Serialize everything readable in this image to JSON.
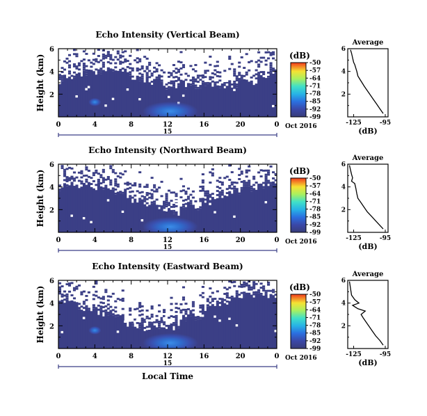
{
  "chart_data": [
    {
      "type": "heatmap",
      "title": "Echo Intensity (Vertical Beam)",
      "ylabel": "Height (km)",
      "x_ticks": [
        "0",
        "4",
        "8",
        "12",
        "16",
        "20",
        "0"
      ],
      "y_ticks": [
        "6",
        "4",
        "2"
      ],
      "xlim": [
        0,
        24
      ],
      "ylim": [
        0,
        6
      ],
      "date_label": "Oct 2016",
      "day_label": "15",
      "colorbar": {
        "label": "(dB)",
        "ticks": [
          "-50",
          "-57",
          "-64",
          "-71",
          "-78",
          "-85",
          "-92",
          "-99"
        ],
        "range": [
          -99,
          -50
        ]
      },
      "profile": {
        "title": "Average",
        "xlabel": "(dB)",
        "x_ticks": [
          "-125",
          "-95"
        ],
        "y_ticks": [
          "6",
          "4",
          "2"
        ],
        "points": [
          [
            -128,
            5.9
          ],
          [
            -127,
            5.6
          ],
          [
            -126,
            5.2
          ],
          [
            -125,
            4.8
          ],
          [
            -124,
            4.6
          ],
          [
            -123,
            4.3
          ],
          [
            -122,
            4.0
          ],
          [
            -121,
            3.6
          ],
          [
            -119,
            3.3
          ],
          [
            -117,
            3.0
          ],
          [
            -115,
            2.7
          ],
          [
            -112,
            2.3
          ],
          [
            -109,
            1.9
          ],
          [
            -106,
            1.5
          ],
          [
            -103,
            1.1
          ],
          [
            -100,
            0.7
          ],
          [
            -97,
            0.3
          ]
        ]
      }
    },
    {
      "type": "heatmap",
      "title": "Echo Intensity (Northward Beam)",
      "ylabel": "Height (km)",
      "x_ticks": [
        "0",
        "4",
        "8",
        "12",
        "16",
        "20",
        "0"
      ],
      "y_ticks": [
        "6",
        "4",
        "2"
      ],
      "xlim": [
        0,
        24
      ],
      "ylim": [
        0,
        6
      ],
      "date_label": "Oct 2016",
      "day_label": "15",
      "colorbar": {
        "label": "(dB)",
        "ticks": [
          "-50",
          "-57",
          "-64",
          "-71",
          "-78",
          "-85",
          "-92",
          "-99"
        ],
        "range": [
          -99,
          -50
        ]
      },
      "profile": {
        "title": "Average",
        "xlabel": "(dB)",
        "x_ticks": [
          "-125",
          "-95"
        ],
        "y_ticks": [
          "6",
          "4",
          "2"
        ],
        "points": [
          [
            -129,
            5.9
          ],
          [
            -128,
            5.5
          ],
          [
            -127,
            5.1
          ],
          [
            -126,
            4.8
          ],
          [
            -127,
            4.5
          ],
          [
            -124,
            4.3
          ],
          [
            -123,
            3.9
          ],
          [
            -122,
            3.4
          ],
          [
            -121,
            3.0
          ],
          [
            -118,
            2.6
          ],
          [
            -115,
            2.2
          ],
          [
            -112,
            1.8
          ],
          [
            -108,
            1.4
          ],
          [
            -104,
            1.0
          ],
          [
            -100,
            0.6
          ],
          [
            -97,
            0.3
          ]
        ]
      }
    },
    {
      "type": "heatmap",
      "title": "Echo Intensity (Eastward Beam)",
      "ylabel": "Height (km)",
      "xlabel": "Local Time",
      "x_ticks": [
        "0",
        "4",
        "8",
        "12",
        "16",
        "20",
        "0"
      ],
      "y_ticks": [
        "6",
        "4",
        "2"
      ],
      "xlim": [
        0,
        24
      ],
      "ylim": [
        0,
        6
      ],
      "date_label": "Oct 2016",
      "day_label": "15",
      "colorbar": {
        "label": "(dB)",
        "ticks": [
          "-50",
          "-57",
          "-64",
          "-71",
          "-78",
          "-85",
          "-92",
          "-99"
        ],
        "range": [
          -99,
          -50
        ]
      },
      "profile": {
        "title": "Average",
        "xlabel": "(dB)",
        "x_ticks": [
          "-125",
          "-95"
        ],
        "y_ticks": [
          "6",
          "4",
          "2"
        ],
        "points": [
          [
            -129,
            5.9
          ],
          [
            -128,
            5.3
          ],
          [
            -127,
            4.7
          ],
          [
            -124,
            4.3
          ],
          [
            -120,
            4.0
          ],
          [
            -126,
            3.8
          ],
          [
            -121,
            3.5
          ],
          [
            -114,
            3.3
          ],
          [
            -118,
            3.0
          ],
          [
            -116,
            2.7
          ],
          [
            -113,
            2.3
          ],
          [
            -110,
            1.9
          ],
          [
            -107,
            1.5
          ],
          [
            -104,
            1.1
          ],
          [
            -100,
            0.7
          ],
          [
            -97,
            0.3
          ]
        ]
      }
    }
  ]
}
